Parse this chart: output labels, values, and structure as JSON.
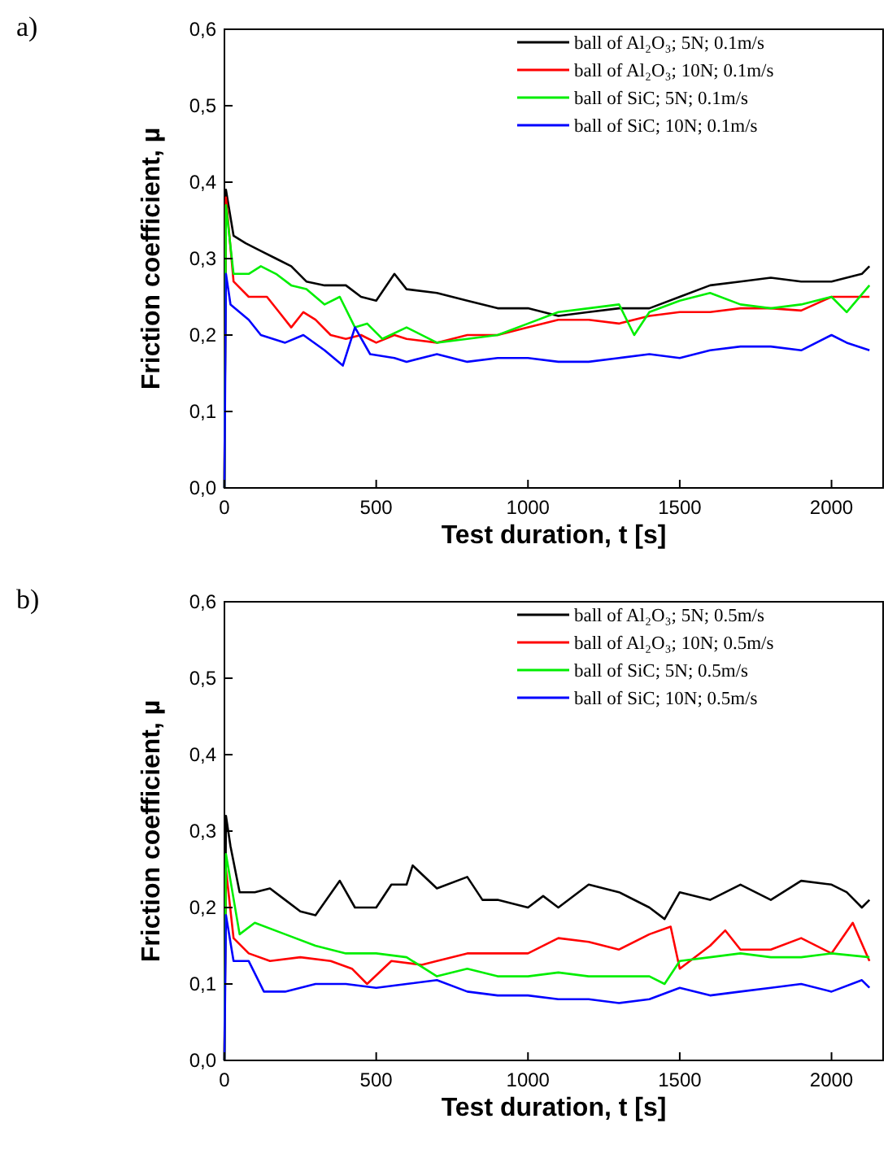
{
  "chart_data": [
    {
      "type": "line",
      "annotations": [
        "a)"
      ],
      "xlabel": "Test duration, t [s]",
      "ylabel": "Friction coefficient, µ",
      "xlim": [
        0,
        2170
      ],
      "ylim": [
        0,
        0.6
      ],
      "xticks": [
        0,
        500,
        1000,
        1500,
        2000
      ],
      "yticks": [
        {
          "value": 0,
          "label": "0,0"
        },
        {
          "value": 0.1,
          "label": "0,1"
        },
        {
          "value": 0.2,
          "label": "0,2"
        },
        {
          "value": 0.3,
          "label": "0,3"
        },
        {
          "value": 0.4,
          "label": "0,4"
        },
        {
          "value": 0.5,
          "label": "0,5"
        },
        {
          "value": 0.6,
          "label": "0,6"
        }
      ],
      "legend": "top right",
      "grid": false,
      "series": [
        {
          "name": "ball of Al₂O₃; 5N; 0.1m/s",
          "color": "#000000",
          "x": [
            0,
            5,
            30,
            70,
            120,
            170,
            220,
            270,
            330,
            400,
            450,
            500,
            560,
            600,
            700,
            800,
            900,
            1000,
            1100,
            1200,
            1300,
            1400,
            1500,
            1600,
            1700,
            1800,
            1900,
            2000,
            2100,
            2125
          ],
          "values": [
            0,
            0.39,
            0.33,
            0.32,
            0.31,
            0.3,
            0.29,
            0.27,
            0.265,
            0.265,
            0.25,
            0.245,
            0.28,
            0.26,
            0.255,
            0.245,
            0.235,
            0.235,
            0.225,
            0.23,
            0.235,
            0.235,
            0.25,
            0.265,
            0.27,
            0.275,
            0.27,
            0.27,
            0.28,
            0.29
          ]
        },
        {
          "name": "ball of Al₂O₃; 10N; 0.1m/s",
          "color": "#ff0000",
          "x": [
            0,
            5,
            30,
            80,
            140,
            180,
            220,
            260,
            300,
            350,
            400,
            450,
            500,
            560,
            600,
            700,
            800,
            900,
            1000,
            1100,
            1200,
            1300,
            1400,
            1500,
            1600,
            1700,
            1800,
            1900,
            2000,
            2125
          ],
          "values": [
            0,
            0.38,
            0.27,
            0.25,
            0.25,
            0.23,
            0.21,
            0.23,
            0.22,
            0.2,
            0.195,
            0.2,
            0.19,
            0.2,
            0.195,
            0.19,
            0.2,
            0.2,
            0.21,
            0.22,
            0.22,
            0.215,
            0.225,
            0.23,
            0.23,
            0.235,
            0.235,
            0.232,
            0.25,
            0.25
          ]
        },
        {
          "name": "ball of SiC; 5N; 0.1m/s",
          "color": "#00ee00",
          "x": [
            0,
            5,
            30,
            80,
            120,
            170,
            220,
            270,
            330,
            380,
            430,
            470,
            520,
            600,
            700,
            800,
            900,
            1000,
            1100,
            1200,
            1300,
            1350,
            1400,
            1500,
            1600,
            1700,
            1800,
            1900,
            2000,
            2050,
            2125
          ],
          "values": [
            0,
            0.37,
            0.28,
            0.28,
            0.29,
            0.28,
            0.265,
            0.26,
            0.24,
            0.25,
            0.21,
            0.215,
            0.195,
            0.21,
            0.19,
            0.195,
            0.2,
            0.215,
            0.23,
            0.235,
            0.24,
            0.2,
            0.23,
            0.245,
            0.255,
            0.24,
            0.235,
            0.24,
            0.25,
            0.23,
            0.265
          ]
        },
        {
          "name": "ball of SiC; 10N; 0.1m/s",
          "color": "#0000ff",
          "x": [
            0,
            5,
            20,
            80,
            120,
            200,
            260,
            330,
            390,
            430,
            480,
            560,
            600,
            700,
            800,
            900,
            1000,
            1100,
            1200,
            1300,
            1400,
            1500,
            1600,
            1700,
            1800,
            1900,
            2000,
            2050,
            2125
          ],
          "values": [
            0,
            0.28,
            0.24,
            0.22,
            0.2,
            0.19,
            0.2,
            0.18,
            0.16,
            0.21,
            0.175,
            0.17,
            0.165,
            0.175,
            0.165,
            0.17,
            0.17,
            0.165,
            0.165,
            0.17,
            0.175,
            0.17,
            0.18,
            0.185,
            0.185,
            0.18,
            0.2,
            0.19,
            0.18
          ]
        }
      ]
    },
    {
      "type": "line",
      "annotations": [
        "b)"
      ],
      "xlabel": "Test duration, t [s]",
      "ylabel": "Friction coefficient, µ",
      "xlim": [
        0,
        2170
      ],
      "ylim": [
        0,
        0.6
      ],
      "xticks": [
        0,
        500,
        1000,
        1500,
        2000
      ],
      "yticks": [
        {
          "value": 0,
          "label": "0,0"
        },
        {
          "value": 0.1,
          "label": "0,1"
        },
        {
          "value": 0.2,
          "label": "0,2"
        },
        {
          "value": 0.3,
          "label": "0,3"
        },
        {
          "value": 0.4,
          "label": "0,4"
        },
        {
          "value": 0.5,
          "label": "0,5"
        },
        {
          "value": 0.6,
          "label": "0,6"
        }
      ],
      "legend": "top right",
      "grid": false,
      "series": [
        {
          "name": "ball of Al₂O₃; 5N; 0.5m/s",
          "color": "#000000",
          "x": [
            0,
            5,
            20,
            50,
            100,
            150,
            200,
            250,
            300,
            380,
            430,
            500,
            550,
            600,
            620,
            700,
            800,
            850,
            900,
            1000,
            1050,
            1100,
            1200,
            1300,
            1400,
            1450,
            1500,
            1600,
            1700,
            1800,
            1900,
            2000,
            2050,
            2100,
            2125
          ],
          "values": [
            0,
            0.32,
            0.28,
            0.22,
            0.22,
            0.225,
            0.21,
            0.195,
            0.19,
            0.235,
            0.2,
            0.2,
            0.23,
            0.23,
            0.255,
            0.225,
            0.24,
            0.21,
            0.21,
            0.2,
            0.215,
            0.2,
            0.23,
            0.22,
            0.2,
            0.185,
            0.22,
            0.21,
            0.23,
            0.21,
            0.235,
            0.23,
            0.22,
            0.2,
            0.21
          ]
        },
        {
          "name": "ball of Al₂O₃; 10N; 0.5m/s",
          "color": "#ff0000",
          "x": [
            0,
            5,
            30,
            80,
            150,
            250,
            350,
            420,
            470,
            550,
            650,
            700,
            800,
            900,
            1000,
            1100,
            1200,
            1300,
            1400,
            1470,
            1500,
            1600,
            1650,
            1700,
            1800,
            1900,
            2000,
            2070,
            2125
          ],
          "values": [
            0,
            0.25,
            0.16,
            0.14,
            0.13,
            0.135,
            0.13,
            0.12,
            0.1,
            0.13,
            0.125,
            0.13,
            0.14,
            0.14,
            0.14,
            0.16,
            0.155,
            0.145,
            0.165,
            0.175,
            0.12,
            0.15,
            0.17,
            0.145,
            0.145,
            0.16,
            0.14,
            0.18,
            0.13
          ]
        },
        {
          "name": "ball of SiC; 5N; 0.5m/s",
          "color": "#00ee00",
          "x": [
            0,
            5,
            50,
            100,
            200,
            300,
            400,
            500,
            600,
            700,
            800,
            900,
            1000,
            1100,
            1200,
            1300,
            1400,
            1450,
            1500,
            1600,
            1700,
            1800,
            1900,
            2000,
            2125
          ],
          "values": [
            0,
            0.27,
            0.165,
            0.18,
            0.165,
            0.15,
            0.14,
            0.14,
            0.135,
            0.11,
            0.12,
            0.11,
            0.11,
            0.115,
            0.11,
            0.11,
            0.11,
            0.1,
            0.13,
            0.135,
            0.14,
            0.135,
            0.135,
            0.14,
            0.135
          ]
        },
        {
          "name": "ball of SiC; 10N; 0.5m/s",
          "color": "#0000ff",
          "x": [
            0,
            5,
            30,
            80,
            130,
            200,
            300,
            400,
            500,
            600,
            700,
            800,
            900,
            1000,
            1100,
            1200,
            1300,
            1400,
            1500,
            1600,
            1700,
            1800,
            1900,
            2000,
            2100,
            2125
          ],
          "values": [
            0,
            0.19,
            0.13,
            0.13,
            0.09,
            0.09,
            0.1,
            0.1,
            0.095,
            0.1,
            0.105,
            0.09,
            0.085,
            0.085,
            0.08,
            0.08,
            0.075,
            0.08,
            0.095,
            0.085,
            0.09,
            0.095,
            0.1,
            0.09,
            0.105,
            0.095
          ]
        }
      ]
    }
  ]
}
